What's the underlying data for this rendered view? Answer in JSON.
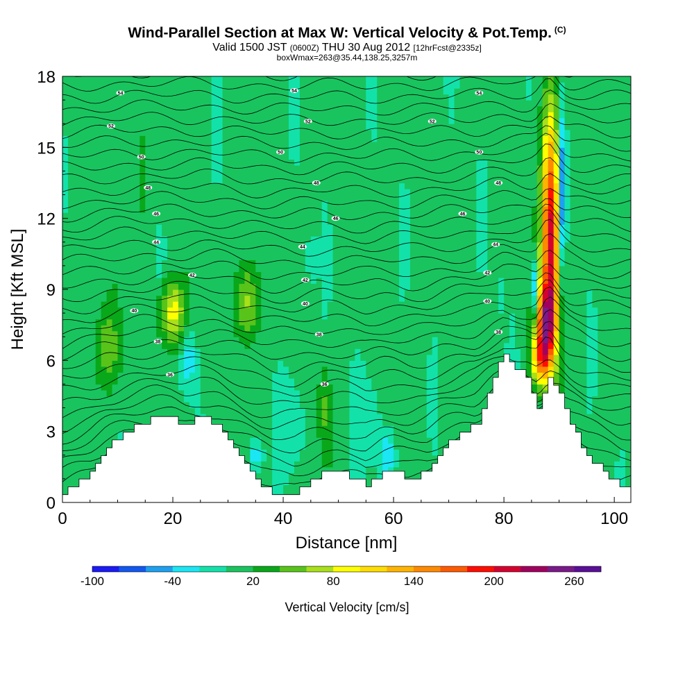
{
  "title": {
    "main": "Wind-Parallel Section at Max W: Vertical Velocity & Pot.Temp.",
    "copyright": "(C)",
    "valid_prefix": "Valid 1500 JST",
    "valid_z": "(0600Z)",
    "valid_date": "THU 30 Aug 2012",
    "forecast": "[12hrFcst@2335z]",
    "box": "boxWmax=263@35.44,138.25,3257m"
  },
  "chart_data": {
    "type": "heatmap",
    "xlabel": "Distance [nm]",
    "ylabel": "Height [Kft MSL]",
    "xlim": [
      0,
      103
    ],
    "ylim": [
      0,
      18
    ],
    "xticks": [
      0,
      20,
      40,
      60,
      80,
      100
    ],
    "yticks": [
      0,
      3,
      6,
      9,
      12,
      15,
      18
    ],
    "colorbar": {
      "label": "Vertical Velocity [cm/s]",
      "tick_labels": [
        "-100",
        "-40",
        "20",
        "80",
        "140",
        "200",
        "260"
      ],
      "colors": [
        "#1b1bf5",
        "#1258f0",
        "#1ea0f0",
        "#1ae6f4",
        "#12e2aa",
        "#19c45e",
        "#08a81a",
        "#58c41a",
        "#a8e01a",
        "#ffff00",
        "#ffdd00",
        "#ffb400",
        "#ff8a00",
        "#ff5a00",
        "#ff0d00",
        "#d4002e",
        "#a0005e",
        "#7a1a8a",
        "#5a0f96"
      ]
    },
    "terrain": {
      "x": [
        0,
        2,
        5,
        8,
        11,
        14,
        17,
        20,
        22,
        25,
        28,
        31,
        34,
        36,
        38,
        40,
        42,
        44,
        47,
        50,
        53,
        55,
        58,
        60,
        63,
        66,
        69,
        72,
        75,
        78,
        80,
        82,
        84,
        86,
        88,
        90,
        92,
        95,
        98,
        101,
        103
      ],
      "height_kft": [
        0.3,
        0.7,
        1.3,
        2.3,
        2.9,
        3.3,
        3.6,
        3.6,
        3.3,
        3.6,
        3.3,
        2.3,
        1.3,
        0.7,
        0.3,
        0.3,
        0.3,
        0.7,
        1.3,
        1.3,
        1.0,
        0.7,
        1.3,
        1.3,
        1.0,
        1.3,
        2.3,
        2.9,
        3.3,
        5.3,
        6.3,
        5.6,
        5.3,
        4.0,
        5.3,
        4.6,
        3.3,
        2.0,
        1.3,
        0.7,
        0.7
      ]
    },
    "contour_labels": [
      {
        "text": "54",
        "x": 10.5,
        "y": 17.3
      },
      {
        "text": "54",
        "x": 42,
        "y": 17.4
      },
      {
        "text": "54",
        "x": 75.5,
        "y": 17.3
      },
      {
        "text": "52",
        "x": 8.8,
        "y": 15.9
      },
      {
        "text": "52",
        "x": 44.5,
        "y": 16.1
      },
      {
        "text": "52",
        "x": 67,
        "y": 16.1
      },
      {
        "text": "50",
        "x": 14.3,
        "y": 14.6
      },
      {
        "text": "50",
        "x": 39.5,
        "y": 14.8
      },
      {
        "text": "50",
        "x": 75.5,
        "y": 14.8
      },
      {
        "text": "48",
        "x": 15.5,
        "y": 13.3
      },
      {
        "text": "48",
        "x": 46,
        "y": 13.5
      },
      {
        "text": "48",
        "x": 79,
        "y": 13.5
      },
      {
        "text": "46",
        "x": 17,
        "y": 12.2
      },
      {
        "text": "46",
        "x": 49.5,
        "y": 12.0
      },
      {
        "text": "46",
        "x": 72.5,
        "y": 12.2
      },
      {
        "text": "44",
        "x": 17,
        "y": 11.0
      },
      {
        "text": "44",
        "x": 43.5,
        "y": 10.8
      },
      {
        "text": "44",
        "x": 78.5,
        "y": 10.9
      },
      {
        "text": "42",
        "x": 23.5,
        "y": 9.6
      },
      {
        "text": "42",
        "x": 44,
        "y": 9.4
      },
      {
        "text": "42",
        "x": 77,
        "y": 9.7
      },
      {
        "text": "40",
        "x": 13,
        "y": 8.1
      },
      {
        "text": "40",
        "x": 44,
        "y": 8.4
      },
      {
        "text": "40",
        "x": 77,
        "y": 8.5
      },
      {
        "text": "38",
        "x": 17.3,
        "y": 6.8
      },
      {
        "text": "38",
        "x": 46.5,
        "y": 7.1
      },
      {
        "text": "38",
        "x": 79,
        "y": 7.2
      },
      {
        "text": "36",
        "x": 19.5,
        "y": 5.4
      },
      {
        "text": "36",
        "x": 47.5,
        "y": 5.0
      }
    ],
    "velocity_features": [
      {
        "x": 8,
        "y": 6.5,
        "peak": 45,
        "wx": 2.8,
        "wy": 1.7
      },
      {
        "x": 20,
        "y": 8.0,
        "peak": 90,
        "wx": 2.2,
        "wy": 1.5
      },
      {
        "x": 22.7,
        "y": 6.1,
        "peak": -45,
        "wx": 1.4,
        "wy": 1.3
      },
      {
        "x": 33.5,
        "y": 8.5,
        "peak": 65,
        "wx": 2.0,
        "wy": 1.8
      },
      {
        "x": 47.5,
        "y": 4.0,
        "peak": 35,
        "wx": 1.2,
        "wy": 1.8
      },
      {
        "x": 42,
        "y": 3.5,
        "peak": -25,
        "wx": 2.5,
        "wy": 2.0
      },
      {
        "x": 35,
        "y": 2.0,
        "peak": -45,
        "wx": 1.2,
        "wy": 0.7
      },
      {
        "x": 59,
        "y": 2.0,
        "peak": -50,
        "wx": 1.2,
        "wy": 0.8
      },
      {
        "x": 56,
        "y": 3.5,
        "peak": -20,
        "wx": 2.5,
        "wy": 2.0
      },
      {
        "x": 88.5,
        "y": 11.5,
        "peak": 200,
        "wx": 1.6,
        "wy": 5.0
      },
      {
        "x": 87.5,
        "y": 7.5,
        "peak": 160,
        "wx": 1.8,
        "wy": 1.8
      },
      {
        "x": 86.5,
        "y": 6.0,
        "peak": 100,
        "wx": 1.5,
        "wy": 1.0
      },
      {
        "x": 85.5,
        "y": 9.0,
        "peak": -80,
        "wx": 0.6,
        "wy": 1.2
      },
      {
        "x": 90.5,
        "y": 13.0,
        "peak": -90,
        "wx": 0.7,
        "wy": 3.5
      },
      {
        "x": 14.5,
        "y": 14.0,
        "peak": 30,
        "wx": 1.0,
        "wy": 2.5
      },
      {
        "x": 17.5,
        "y": 10.5,
        "peak": -25,
        "wx": 0.8,
        "wy": 1.0
      },
      {
        "x": 45,
        "y": 10.3,
        "peak": -25,
        "wx": 0.8,
        "wy": 1.0
      },
      {
        "x": 79.5,
        "y": 8.8,
        "peak": -20,
        "wx": 0.7,
        "wy": 0.8
      }
    ]
  }
}
